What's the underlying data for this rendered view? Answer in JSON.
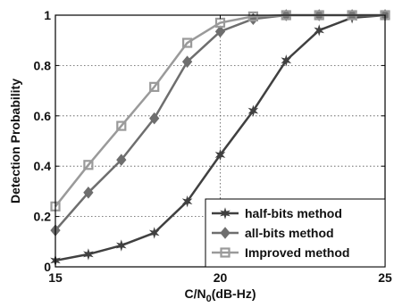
{
  "chart_data": {
    "type": "line",
    "xlabel": "C/N",
    "xlabel_sub": "0",
    "xlabel_suffix": "(dB-Hz)",
    "ylabel": "Detection Probability",
    "xlim": [
      15,
      25
    ],
    "ylim": [
      0,
      1
    ],
    "x_ticks": [
      15,
      20,
      25
    ],
    "y_ticks": [
      0,
      0.2,
      0.4,
      0.6,
      0.8,
      1
    ],
    "x_tick_labels": [
      "15",
      "20",
      "25"
    ],
    "y_tick_labels": [
      "0",
      "0.2",
      "0.4",
      "0.6",
      "0.8",
      "1"
    ],
    "grid": true,
    "legend_position": "bottom-right",
    "x": [
      15,
      16,
      17,
      18,
      19,
      20,
      21,
      22,
      23,
      24,
      25
    ],
    "series": [
      {
        "name": "half-bits method",
        "marker": "star",
        "color": "#404040",
        "values": [
          0.025,
          0.05,
          0.085,
          0.135,
          0.26,
          0.445,
          0.62,
          0.82,
          0.94,
          0.99,
          1.0
        ]
      },
      {
        "name": "all-bits method",
        "marker": "diamond",
        "color": "#6e6e6e",
        "values": [
          0.145,
          0.295,
          0.425,
          0.59,
          0.815,
          0.935,
          0.985,
          1.0,
          1.0,
          1.0,
          1.0
        ]
      },
      {
        "name": "Improved method",
        "marker": "square",
        "color": "#9a9a9a",
        "values": [
          0.24,
          0.405,
          0.56,
          0.715,
          0.89,
          0.97,
          0.995,
          1.0,
          1.0,
          1.0,
          1.0
        ]
      }
    ]
  }
}
